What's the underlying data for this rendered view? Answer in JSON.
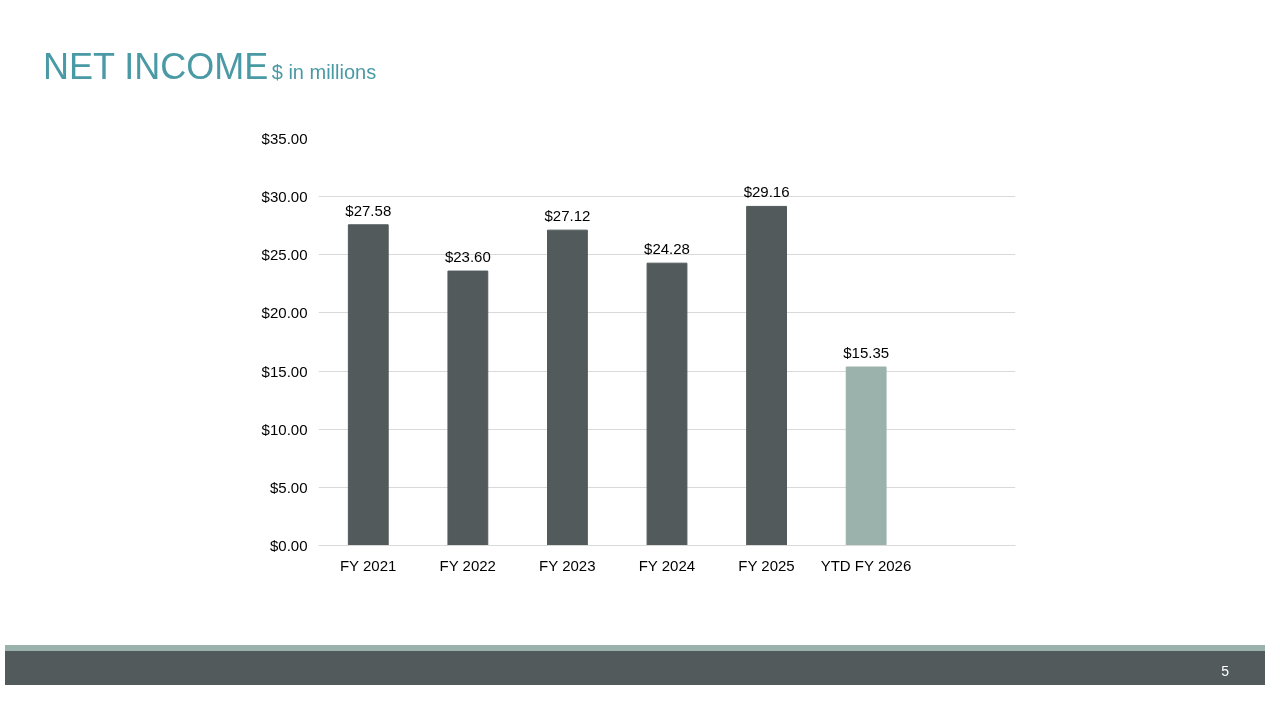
{
  "chart_data": {
    "type": "bar",
    "title": "NET INCOME",
    "subtitle": "$ in millions",
    "categories": [
      "FY 2021",
      "FY 2022",
      "FY 2023",
      "FY 2024",
      "FY 2025",
      "YTD FY 2026",
      null
    ],
    "values": [
      27.58,
      23.6,
      27.12,
      24.28,
      29.16,
      15.35,
      null
    ],
    "colors": [
      "#525a5c",
      "#525a5c",
      "#525a5c",
      "#525a5c",
      "#525a5c",
      "#9bb1ab",
      "#9bb1ab"
    ],
    "value_labels": [
      "$27.58",
      "$23.60",
      "$27.12",
      "$24.28",
      "$29.16",
      "$15.35",
      null
    ],
    "ylim": [
      0,
      35
    ],
    "yticks": [
      {
        "value": 0,
        "label": "$0.00"
      },
      {
        "value": 5,
        "label": "$5.00"
      },
      {
        "value": 10,
        "label": "$10.00"
      },
      {
        "value": 15,
        "label": "$15.00"
      },
      {
        "value": 20,
        "label": "$20.00"
      },
      {
        "value": 25,
        "label": "$25.00"
      },
      {
        "value": 30,
        "label": "$30.00"
      },
      {
        "value": 35,
        "label": "$35.00"
      }
    ],
    "grid": "y",
    "annotations": [
      "5"
    ]
  }
}
